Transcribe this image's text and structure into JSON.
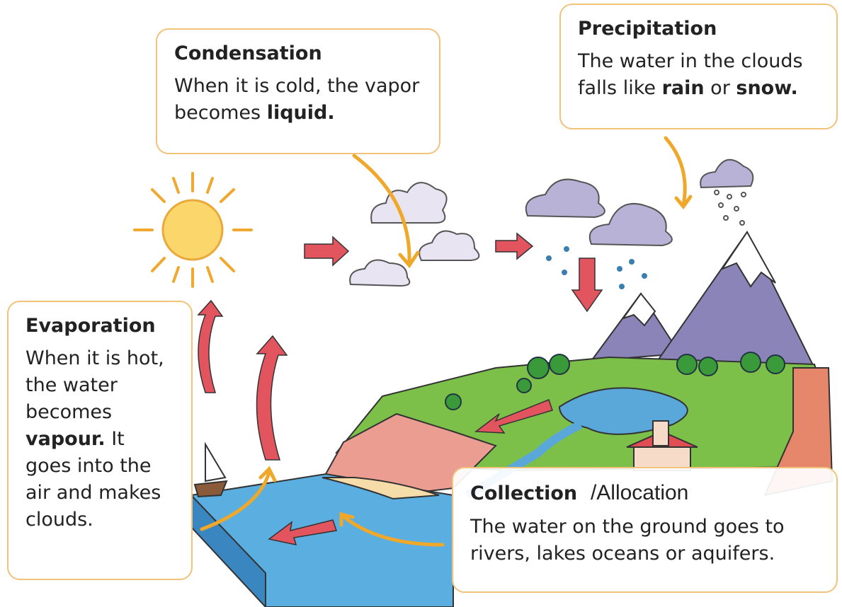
{
  "boxes": [
    {
      "title": "Condensation",
      "body": [
        {
          "text": "When it is cold, the vapor becomes "
        },
        {
          "text": "liquid.",
          "bold": true
        }
      ]
    },
    {
      "title": "Precipitation",
      "body": [
        {
          "text": "The water in the clouds falls like "
        },
        {
          "text": "rain",
          "bold": true
        },
        {
          "text": " or "
        },
        {
          "text": "snow.",
          "bold": true
        }
      ]
    },
    {
      "title": "Evaporation",
      "body": [
        {
          "text": "When it is hot, the water becomes "
        },
        {
          "text": "vapour.",
          "bold": true
        },
        {
          "text": " It goes into the air and makes clouds."
        }
      ]
    },
    {
      "title": "Collection",
      "title_note": "/Allocation",
      "body": [
        {
          "text": "The water on the ground goes to rivers, lakes oceans or aquifers."
        }
      ]
    }
  ]
}
